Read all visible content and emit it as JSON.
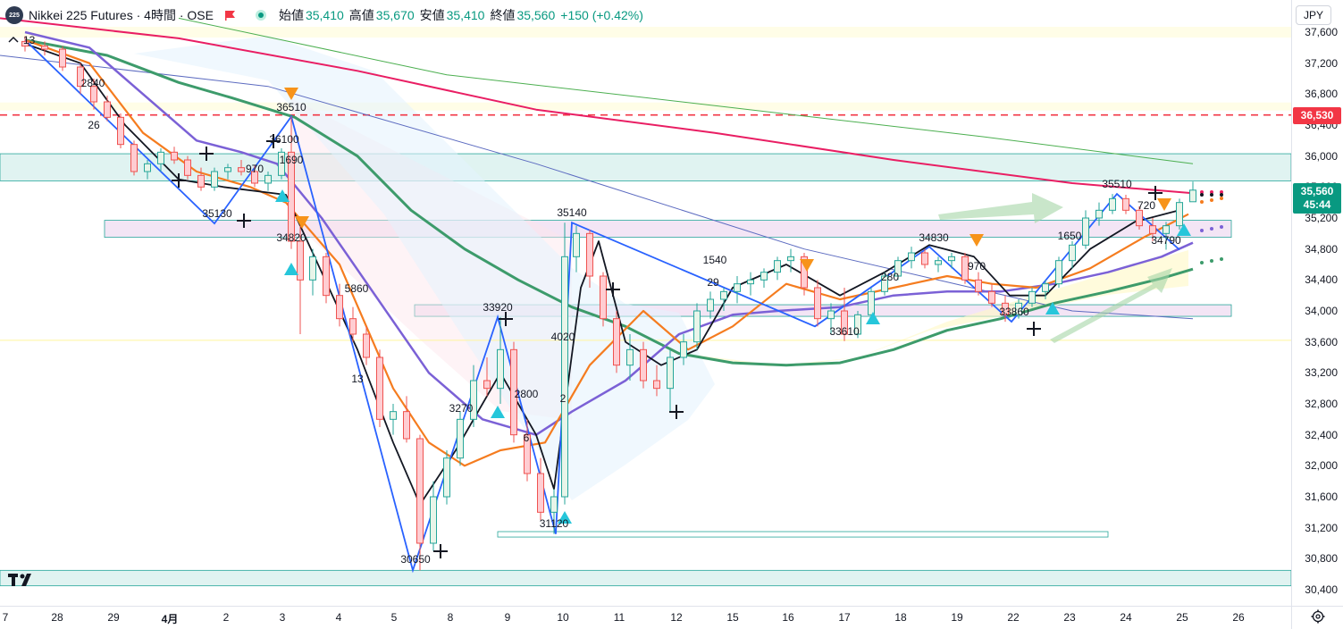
{
  "legend": {
    "symbol_badge": "225",
    "title": "Nikkei 225 Futures · 4時間 · OSE",
    "open_label": "始値",
    "open": "35,410",
    "high_label": "高値",
    "high": "35,670",
    "low_label": "安値",
    "low": "35,410",
    "close_label": "終値",
    "close": "35,560",
    "change": "+150 (+0.42%)"
  },
  "study_count": "13",
  "currency": "JPY",
  "price_axis": {
    "ticks": [
      "37,600",
      "37,200",
      "36,800",
      "36,400",
      "36,000",
      "35,600",
      "35,200",
      "34,800",
      "34,400",
      "34,000",
      "33,600",
      "33,200",
      "32,800",
      "32,400",
      "32,000",
      "31,600",
      "31,200",
      "30,800",
      "30,400"
    ],
    "alert_price": "36,530",
    "last_price": "35,560",
    "countdown": "45:44"
  },
  "time_axis": [
    "7",
    "28",
    "29",
    "4月",
    "2",
    "3",
    "4",
    "5",
    "8",
    "9",
    "10",
    "11",
    "12",
    "15",
    "16",
    "17",
    "18",
    "19",
    "22",
    "23",
    "24",
    "25",
    "26"
  ],
  "annotations": [
    "2840",
    "26",
    "36510",
    "36100",
    "1690",
    "970",
    "35130",
    "34820",
    "5860",
    "13",
    "33920",
    "3270",
    "2800",
    "6",
    "35140",
    "4020",
    "2",
    "31120",
    "30650",
    "1540",
    "29",
    "34830",
    "970",
    "33860",
    "1650",
    "35510",
    "720",
    "34790",
    "33610",
    "280"
  ],
  "chart_data": {
    "type": "candlestick",
    "symbol": "Nikkei 225 Futures",
    "interval": "4時間",
    "exchange": "OSE",
    "currency": "JPY",
    "ylim": [
      30300,
      37800
    ],
    "last": 35560,
    "alert_line": 36530,
    "colors": {
      "up": "#089981",
      "down": "#f23645",
      "ma_black": "#131722",
      "ma_orange": "#f57c1f",
      "ma_purple": "#7b61d6",
      "ma_green": "#3d9b6b",
      "ma_pink": "#e91e63",
      "zigzag": "#2962ff"
    },
    "zones": [
      {
        "from": 35680,
        "to": 36030,
        "color": "#e0f3f1"
      },
      {
        "from": 34950,
        "to": 35170,
        "color": "#f3e5f5"
      },
      {
        "from": 33930,
        "to": 34080,
        "color": "#f3e5f5"
      },
      {
        "from": 31080,
        "to": 31150,
        "color": "#ffffff"
      },
      {
        "from": 30450,
        "to": 30650,
        "color": "#e0f3f1"
      }
    ],
    "zigzag": [
      {
        "x": 28,
        "y": 37500
      },
      {
        "x": 240,
        "y": 35130
      },
      {
        "x": 326,
        "y": 36510
      },
      {
        "x": 462,
        "y": 30650
      },
      {
        "x": 557,
        "y": 33920
      },
      {
        "x": 622,
        "y": 31120
      },
      {
        "x": 640,
        "y": 35140
      },
      {
        "x": 912,
        "y": 33800
      },
      {
        "x": 1040,
        "y": 34830
      },
      {
        "x": 1132,
        "y": 33860
      },
      {
        "x": 1250,
        "y": 35510
      },
      {
        "x": 1320,
        "y": 34790
      }
    ],
    "ma_black": [
      [
        28,
        37450
      ],
      [
        90,
        37200
      ],
      [
        140,
        36400
      ],
      [
        200,
        35700
      ],
      [
        250,
        35600
      ],
      [
        320,
        35500
      ],
      [
        360,
        34500
      ],
      [
        400,
        33500
      ],
      [
        440,
        32300
      ],
      [
        470,
        31500
      ],
      [
        510,
        32200
      ],
      [
        560,
        33200
      ],
      [
        600,
        32400
      ],
      [
        620,
        31700
      ],
      [
        650,
        34300
      ],
      [
        670,
        34900
      ],
      [
        700,
        33600
      ],
      [
        740,
        33300
      ],
      [
        780,
        33500
      ],
      [
        820,
        34300
      ],
      [
        880,
        34600
      ],
      [
        940,
        34200
      ],
      [
        990,
        34500
      ],
      [
        1040,
        34850
      ],
      [
        1090,
        34700
      ],
      [
        1130,
        34200
      ],
      [
        1170,
        34200
      ],
      [
        1220,
        34800
      ],
      [
        1270,
        35150
      ],
      [
        1320,
        35300
      ]
    ],
    "ma_orange": [
      [
        28,
        37500
      ],
      [
        100,
        37200
      ],
      [
        160,
        36300
      ],
      [
        220,
        35800
      ],
      [
        280,
        35600
      ],
      [
        320,
        35400
      ],
      [
        380,
        34600
      ],
      [
        440,
        33000
      ],
      [
        480,
        32300
      ],
      [
        520,
        32000
      ],
      [
        560,
        32200
      ],
      [
        610,
        32300
      ],
      [
        660,
        33300
      ],
      [
        720,
        34000
      ],
      [
        770,
        33500
      ],
      [
        820,
        33800
      ],
      [
        880,
        34350
      ],
      [
        940,
        34150
      ],
      [
        1000,
        34300
      ],
      [
        1060,
        34450
      ],
      [
        1110,
        34350
      ],
      [
        1160,
        34300
      ],
      [
        1220,
        34550
      ],
      [
        1280,
        34950
      ],
      [
        1330,
        35250
      ]
    ],
    "ma_purple": [
      [
        28,
        37600
      ],
      [
        100,
        37400
      ],
      [
        160,
        36800
      ],
      [
        220,
        36200
      ],
      [
        270,
        36050
      ],
      [
        310,
        35900
      ],
      [
        360,
        35200
      ],
      [
        420,
        34200
      ],
      [
        480,
        33200
      ],
      [
        540,
        32600
      ],
      [
        600,
        32400
      ],
      [
        640,
        32700
      ],
      [
        700,
        33100
      ],
      [
        760,
        33700
      ],
      [
        820,
        33950
      ],
      [
        870,
        34000
      ],
      [
        940,
        34050
      ],
      [
        1000,
        34200
      ],
      [
        1060,
        34250
      ],
      [
        1120,
        34250
      ],
      [
        1180,
        34350
      ],
      [
        1240,
        34500
      ],
      [
        1300,
        34700
      ],
      [
        1335,
        34880
      ]
    ],
    "ma_green": [
      [
        28,
        37500
      ],
      [
        120,
        37300
      ],
      [
        200,
        36950
      ],
      [
        260,
        36750
      ],
      [
        330,
        36500
      ],
      [
        400,
        36000
      ],
      [
        460,
        35300
      ],
      [
        520,
        34800
      ],
      [
        580,
        34400
      ],
      [
        640,
        34050
      ],
      [
        700,
        33800
      ],
      [
        760,
        33450
      ],
      [
        820,
        33330
      ],
      [
        880,
        33300
      ],
      [
        940,
        33330
      ],
      [
        1000,
        33500
      ],
      [
        1060,
        33750
      ],
      [
        1120,
        33900
      ],
      [
        1180,
        34100
      ],
      [
        1240,
        34250
      ],
      [
        1300,
        34420
      ],
      [
        1335,
        34540
      ]
    ],
    "ma_pink": [
      [
        0,
        37780
      ],
      [
        200,
        37520
      ],
      [
        400,
        37100
      ],
      [
        600,
        36600
      ],
      [
        800,
        36300
      ],
      [
        1000,
        35950
      ],
      [
        1200,
        35650
      ],
      [
        1335,
        35520
      ]
    ],
    "ma_thin_green": [
      [
        200,
        37780
      ],
      [
        500,
        37050
      ],
      [
        800,
        36650
      ],
      [
        1100,
        36250
      ],
      [
        1335,
        35900
      ]
    ],
    "ma_thin_purple": [
      [
        0,
        37300
      ],
      [
        300,
        36900
      ],
      [
        600,
        35900
      ],
      [
        900,
        34800
      ],
      [
        1200,
        34000
      ],
      [
        1335,
        33900
      ]
    ],
    "candles": [
      [
        28,
        37480,
        37550,
        37350,
        37420
      ],
      [
        50,
        37420,
        37480,
        37300,
        37380
      ],
      [
        70,
        37380,
        37420,
        37100,
        37150
      ],
      [
        90,
        37150,
        37200,
        36800,
        36900
      ],
      [
        105,
        36900,
        37000,
        36600,
        36700
      ],
      [
        120,
        36700,
        36780,
        36450,
        36500
      ],
      [
        135,
        36500,
        36550,
        36100,
        36150
      ],
      [
        150,
        36150,
        36200,
        35750,
        35800
      ],
      [
        165,
        35800,
        35950,
        35700,
        35900
      ],
      [
        180,
        35900,
        36100,
        35800,
        36050
      ],
      [
        195,
        36050,
        36120,
        35900,
        35950
      ],
      [
        210,
        35950,
        36000,
        35700,
        35750
      ],
      [
        225,
        35750,
        35850,
        35550,
        35600
      ],
      [
        240,
        35600,
        35850,
        35550,
        35800
      ],
      [
        255,
        35800,
        35900,
        35700,
        35850
      ],
      [
        270,
        35850,
        35950,
        35750,
        35800
      ],
      [
        285,
        35800,
        35880,
        35600,
        35650
      ],
      [
        300,
        35650,
        35800,
        35550,
        35750
      ],
      [
        315,
        35750,
        36100,
        35700,
        36050
      ],
      [
        326,
        36050,
        36510,
        34800,
        34900
      ],
      [
        336,
        34900,
        35100,
        33700,
        34400
      ],
      [
        350,
        34400,
        34800,
        34200,
        34700
      ],
      [
        365,
        34700,
        34750,
        34100,
        34200
      ],
      [
        380,
        34200,
        34350,
        33800,
        33900
      ],
      [
        395,
        33900,
        34050,
        33600,
        33700
      ],
      [
        410,
        33700,
        33800,
        33300,
        33400
      ],
      [
        425,
        33400,
        33500,
        32500,
        32600
      ],
      [
        440,
        32600,
        32800,
        32400,
        32700
      ],
      [
        455,
        32700,
        32900,
        32300,
        32350
      ],
      [
        470,
        32350,
        32400,
        30650,
        31000
      ],
      [
        485,
        31000,
        31800,
        30900,
        31600
      ],
      [
        500,
        31600,
        32200,
        31500,
        32100
      ],
      [
        515,
        32100,
        32700,
        32000,
        32600
      ],
      [
        530,
        32600,
        33300,
        32500,
        33100
      ],
      [
        545,
        33100,
        33400,
        32900,
        33000
      ],
      [
        560,
        33000,
        33920,
        32800,
        33500
      ],
      [
        575,
        33500,
        33600,
        32300,
        32400
      ],
      [
        590,
        32400,
        32600,
        31800,
        31900
      ],
      [
        605,
        31900,
        32100,
        31300,
        31400
      ],
      [
        620,
        31400,
        31700,
        31120,
        31600
      ],
      [
        632,
        31600,
        35140,
        31500,
        34700
      ],
      [
        645,
        34700,
        35100,
        34500,
        35000
      ],
      [
        660,
        35000,
        35050,
        34300,
        34450
      ],
      [
        675,
        34450,
        34500,
        33800,
        33900
      ],
      [
        690,
        33900,
        34000,
        33200,
        33300
      ],
      [
        705,
        33300,
        33700,
        33100,
        33500
      ],
      [
        720,
        33500,
        33600,
        33000,
        33100
      ],
      [
        735,
        33100,
        33300,
        32900,
        33000
      ],
      [
        750,
        33000,
        33500,
        32700,
        33400
      ],
      [
        765,
        33400,
        33700,
        33300,
        33600
      ],
      [
        780,
        33600,
        34100,
        33500,
        34000
      ],
      [
        795,
        34000,
        34250,
        33900,
        34150
      ],
      [
        810,
        34150,
        34300,
        34000,
        34250
      ],
      [
        825,
        34250,
        34450,
        34100,
        34350
      ],
      [
        840,
        34350,
        34500,
        34200,
        34400
      ],
      [
        855,
        34400,
        34550,
        34300,
        34500
      ],
      [
        870,
        34500,
        34700,
        34400,
        34650
      ],
      [
        885,
        34650,
        34800,
        34500,
        34700
      ],
      [
        900,
        34700,
        34750,
        34200,
        34300
      ],
      [
        915,
        34300,
        34400,
        33800,
        33900
      ],
      [
        930,
        33900,
        34100,
        33700,
        34000
      ],
      [
        945,
        34000,
        34300,
        33610,
        33700
      ],
      [
        960,
        33700,
        34000,
        33650,
        33950
      ],
      [
        975,
        33950,
        34300,
        33900,
        34250
      ],
      [
        990,
        34250,
        34500,
        34200,
        34450
      ],
      [
        1005,
        34450,
        34700,
        34400,
        34650
      ],
      [
        1020,
        34650,
        34830,
        34550,
        34750
      ],
      [
        1035,
        34750,
        34800,
        34550,
        34600
      ],
      [
        1050,
        34600,
        34700,
        34500,
        34650
      ],
      [
        1065,
        34650,
        34750,
        34550,
        34700
      ],
      [
        1080,
        34700,
        34750,
        34350,
        34400
      ],
      [
        1095,
        34400,
        34500,
        34200,
        34250
      ],
      [
        1110,
        34250,
        34350,
        34050,
        34100
      ],
      [
        1125,
        34100,
        34200,
        33860,
        33950
      ],
      [
        1140,
        33950,
        34150,
        33900,
        34100
      ],
      [
        1155,
        34100,
        34300,
        34050,
        34250
      ],
      [
        1170,
        34250,
        34400,
        34150,
        34350
      ],
      [
        1185,
        34350,
        34700,
        34300,
        34650
      ],
      [
        1200,
        34650,
        34900,
        34550,
        34850
      ],
      [
        1215,
        34850,
        35300,
        34800,
        35200
      ],
      [
        1230,
        35200,
        35400,
        35100,
        35300
      ],
      [
        1245,
        35300,
        35510,
        35250,
        35450
      ],
      [
        1260,
        35450,
        35500,
        35250,
        35300
      ],
      [
        1275,
        35300,
        35350,
        35050,
        35100
      ],
      [
        1290,
        35100,
        35200,
        34900,
        35000
      ],
      [
        1305,
        35000,
        35150,
        34790,
        35100
      ],
      [
        1320,
        35100,
        35450,
        35050,
        35400
      ],
      [
        1335,
        35410,
        35670,
        35410,
        35560
      ]
    ]
  }
}
